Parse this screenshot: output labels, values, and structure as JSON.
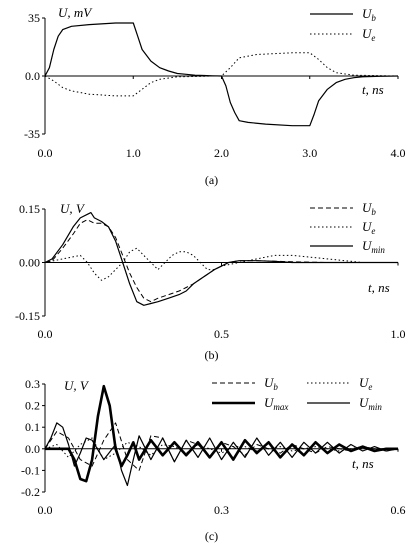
{
  "chart_data": [
    {
      "type": "line",
      "caption": "(a)",
      "ylabel": "U, mV",
      "xlabel": "t, ns",
      "xlim": [
        0,
        4.0
      ],
      "ylim": [
        -35,
        35
      ],
      "xticks": [
        "0.0",
        "1.0",
        "2.0",
        "3.0",
        "4.0"
      ],
      "yticks": [
        "35",
        "0.0",
        "-35"
      ],
      "ytick_values": [
        35,
        0,
        -35
      ],
      "legend_position": "top-right",
      "series": [
        {
          "name": "U",
          "sub": "b",
          "style": "solid",
          "x": [
            0,
            0.05,
            0.1,
            0.15,
            0.2,
            0.3,
            0.5,
            0.8,
            1.0,
            1.05,
            1.1,
            1.2,
            1.3,
            1.4,
            1.5,
            1.6,
            1.7,
            1.8,
            1.9,
            2.0,
            2.05,
            2.1,
            2.15,
            2.2,
            2.3,
            2.5,
            2.8,
            3.0,
            3.05,
            3.1,
            3.2,
            3.3,
            3.4,
            3.5,
            3.6,
            3.8,
            4.0
          ],
          "y": [
            0,
            5,
            16,
            24,
            28,
            30,
            31,
            32,
            32,
            24,
            16,
            9,
            5,
            3,
            1.5,
            1,
            0.5,
            0.3,
            0.1,
            0,
            -6,
            -16,
            -22,
            -27,
            -28,
            -29,
            -30,
            -30,
            -23,
            -15,
            -8,
            -4,
            -2,
            -1,
            -0.5,
            -0.2,
            0
          ]
        },
        {
          "name": "U",
          "sub": "e",
          "style": "dotted",
          "x": [
            0,
            0.1,
            0.2,
            0.3,
            0.5,
            0.8,
            1.0,
            1.1,
            1.2,
            1.3,
            1.5,
            1.8,
            1.9,
            2.0,
            2.1,
            2.2,
            2.4,
            2.8,
            3.0,
            3.1,
            3.2,
            3.3,
            3.5,
            4.0
          ],
          "y": [
            0,
            -3,
            -7,
            -9,
            -11,
            -12,
            -12,
            -8,
            -4,
            -2,
            -0.5,
            -0.2,
            0,
            0,
            5,
            11,
            13,
            14,
            14,
            10,
            5,
            2,
            0.5,
            0
          ]
        }
      ]
    },
    {
      "type": "line",
      "caption": "(b)",
      "ylabel": "U, V",
      "xlabel": "t, ns",
      "xlim": [
        0,
        1.0
      ],
      "ylim": [
        -0.15,
        0.15
      ],
      "xticks": [
        "0.0",
        "0.5",
        "1.0"
      ],
      "yticks": [
        "0.15",
        "0.00",
        "-0.15"
      ],
      "ytick_values": [
        0.15,
        0,
        -0.15
      ],
      "legend_position": "top-right",
      "series": [
        {
          "name": "U",
          "sub": "b",
          "style": "dashed",
          "x": [
            0,
            0.02,
            0.05,
            0.08,
            0.1,
            0.12,
            0.14,
            0.16,
            0.18,
            0.2,
            0.22,
            0.24,
            0.26,
            0.28,
            0.3,
            0.32,
            0.35,
            0.38,
            0.4,
            0.42,
            0.45,
            0.48,
            0.5,
            0.52,
            0.55,
            0.6,
            0.7,
            0.8,
            0.9,
            1.0
          ],
          "y": [
            0,
            0.005,
            0.04,
            0.08,
            0.11,
            0.12,
            0.11,
            0.11,
            0.1,
            0.07,
            0.02,
            -0.03,
            -0.07,
            -0.1,
            -0.11,
            -0.1,
            -0.09,
            -0.08,
            -0.07,
            -0.06,
            -0.04,
            -0.02,
            -0.01,
            0,
            0.005,
            0.005,
            0.002,
            0,
            0,
            0
          ]
        },
        {
          "name": "U",
          "sub": "e",
          "style": "dotted",
          "x": [
            0,
            0.05,
            0.1,
            0.12,
            0.14,
            0.16,
            0.18,
            0.2,
            0.22,
            0.24,
            0.26,
            0.28,
            0.3,
            0.32,
            0.34,
            0.36,
            0.38,
            0.4,
            0.42,
            0.44,
            0.46,
            0.48,
            0.5,
            0.55,
            0.6,
            0.65,
            0.7,
            0.75,
            0.8,
            0.9,
            1.0
          ],
          "y": [
            0,
            0.01,
            0.02,
            0,
            -0.03,
            -0.05,
            -0.04,
            -0.02,
            0,
            0.03,
            0.04,
            0.02,
            0,
            -0.02,
            0,
            0.02,
            0.03,
            0.03,
            0.02,
            0,
            -0.02,
            -0.02,
            -0.01,
            0,
            0.01,
            0.02,
            0.02,
            0.015,
            0.01,
            0,
            0
          ]
        },
        {
          "name": "U",
          "sub": "min",
          "style": "solid",
          "x": [
            0,
            0.02,
            0.05,
            0.08,
            0.1,
            0.12,
            0.13,
            0.14,
            0.16,
            0.18,
            0.2,
            0.22,
            0.24,
            0.26,
            0.28,
            0.3,
            0.32,
            0.35,
            0.38,
            0.4,
            0.42,
            0.45,
            0.48,
            0.5,
            0.52,
            0.55,
            0.6,
            0.65,
            0.7,
            0.8,
            0.9,
            1.0
          ],
          "y": [
            0,
            0.01,
            0.05,
            0.1,
            0.125,
            0.135,
            0.14,
            0.125,
            0.115,
            0.1,
            0.06,
            0,
            -0.06,
            -0.11,
            -0.12,
            -0.115,
            -0.11,
            -0.1,
            -0.09,
            -0.08,
            -0.06,
            -0.04,
            -0.02,
            -0.01,
            0,
            0.005,
            0.005,
            0.003,
            0,
            0,
            0,
            0
          ]
        }
      ]
    },
    {
      "type": "line",
      "caption": "(c)",
      "ylabel": "U, V",
      "xlabel": "t, ns",
      "xlim": [
        0,
        0.6
      ],
      "ylim": [
        -0.2,
        0.3
      ],
      "xticks": [
        "0.0",
        "0.3",
        "0.6"
      ],
      "yticks": [
        "0.3",
        "0.2",
        "0.1",
        "0.0",
        "-0.1",
        "-0.2"
      ],
      "ytick_values": [
        0.3,
        0.2,
        0.1,
        0,
        -0.1,
        -0.2
      ],
      "legend_position": "top",
      "series": [
        {
          "name": "U",
          "sub": "b",
          "style": "dashed",
          "x": [
            0,
            0.02,
            0.04,
            0.06,
            0.08,
            0.1,
            0.12,
            0.14,
            0.16,
            0.18,
            0.2,
            0.22,
            0.24,
            0.26,
            0.28,
            0.3,
            0.32,
            0.34,
            0.36,
            0.38,
            0.4,
            0.42,
            0.44,
            0.46,
            0.48,
            0.5,
            0.52,
            0.54,
            0.56,
            0.58,
            0.6
          ],
          "y": [
            0,
            0.08,
            0.05,
            -0.05,
            -0.08,
            0.04,
            0.12,
            -0.05,
            -0.1,
            0.06,
            0.05,
            -0.06,
            0.04,
            0.02,
            -0.04,
            0.03,
            0.01,
            -0.03,
            0.02,
            0,
            -0.02,
            0.02,
            0,
            -0.02,
            0.01,
            0,
            -0.01,
            0.01,
            0,
            -0.01,
            0
          ]
        },
        {
          "name": "U",
          "sub": "e",
          "style": "dotted",
          "x": [
            0,
            0.02,
            0.04,
            0.06,
            0.08,
            0.1,
            0.12,
            0.14,
            0.16,
            0.18,
            0.2,
            0.22,
            0.24,
            0.26,
            0.28,
            0.3,
            0.32,
            0.34,
            0.36,
            0.38,
            0.4,
            0.42,
            0.44,
            0.46,
            0.48,
            0.5,
            0.52,
            0.54,
            0.56,
            0.58,
            0.6
          ],
          "y": [
            0,
            0.02,
            -0.04,
            0.02,
            0.05,
            -0.05,
            -0.02,
            0.03,
            0.01,
            -0.03,
            0.02,
            0.01,
            -0.02,
            0.02,
            0,
            -0.02,
            0.01,
            0.01,
            -0.01,
            0,
            0.01,
            -0.01,
            0,
            0.01,
            0,
            -0.01,
            0,
            0.01,
            0,
            0,
            0
          ]
        },
        {
          "name": "U",
          "sub": "max",
          "style": "bold",
          "x": [
            0,
            0.02,
            0.04,
            0.05,
            0.06,
            0.07,
            0.08,
            0.09,
            0.1,
            0.11,
            0.12,
            0.13,
            0.14,
            0.15,
            0.16,
            0.18,
            0.2,
            0.22,
            0.24,
            0.26,
            0.28,
            0.3,
            0.32,
            0.34,
            0.36,
            0.38,
            0.4,
            0.42,
            0.44,
            0.46,
            0.48,
            0.5,
            0.52,
            0.54,
            0.56,
            0.58,
            0.6
          ],
          "y": [
            0,
            0,
            0,
            -0.05,
            -0.14,
            -0.15,
            -0.05,
            0.15,
            0.29,
            0.2,
            0,
            -0.08,
            -0.03,
            0.03,
            -0.05,
            0.04,
            -0.03,
            0.03,
            -0.03,
            0.03,
            -0.04,
            0.03,
            -0.05,
            0.04,
            -0.02,
            0.03,
            -0.04,
            0.02,
            -0.03,
            0.03,
            -0.02,
            0.02,
            -0.01,
            0.01,
            -0.01,
            0,
            0
          ]
        },
        {
          "name": "U",
          "sub": "min",
          "style": "solid",
          "x": [
            0,
            0.01,
            0.02,
            0.03,
            0.04,
            0.05,
            0.06,
            0.07,
            0.08,
            0.1,
            0.12,
            0.13,
            0.14,
            0.15,
            0.16,
            0.18,
            0.2,
            0.22,
            0.24,
            0.26,
            0.28,
            0.3,
            0.32,
            0.34,
            0.36,
            0.38,
            0.4,
            0.42,
            0.44,
            0.46,
            0.48,
            0.5,
            0.52,
            0.54,
            0.56,
            0.58,
            0.6
          ],
          "y": [
            0,
            0.05,
            0.12,
            0.1,
            0.02,
            -0.08,
            -0.02,
            0.05,
            0.04,
            -0.05,
            0.02,
            -0.1,
            -0.17,
            -0.05,
            0.06,
            -0.05,
            0.05,
            -0.06,
            0.04,
            -0.04,
            0.05,
            -0.05,
            0.03,
            -0.04,
            0.05,
            -0.03,
            0.03,
            -0.04,
            0.03,
            -0.02,
            0.03,
            -0.02,
            0.02,
            -0.01,
            0.01,
            -0.01,
            0
          ]
        }
      ]
    }
  ]
}
